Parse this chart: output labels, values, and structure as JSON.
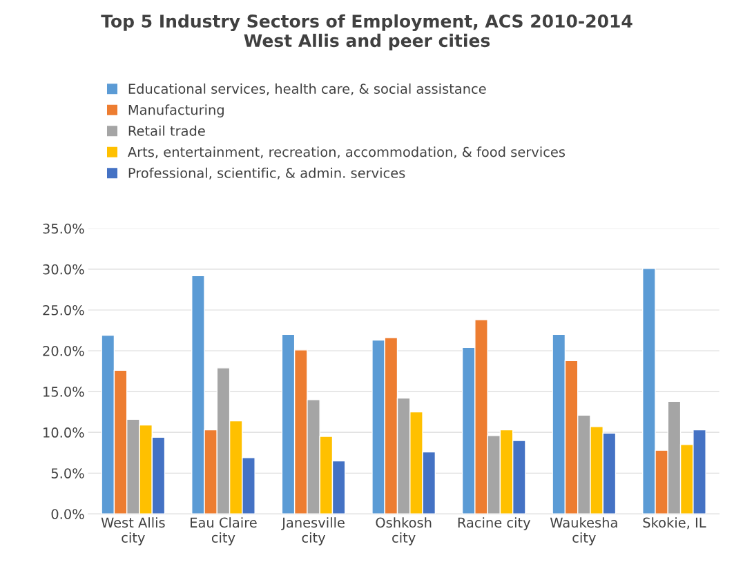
{
  "chart_data": {
    "type": "bar",
    "title": "Top 5 Industry Sectors of Employment, ACS 2010-2014\nWest Allis and peer cities",
    "categories": [
      "West Allis\ncity",
      "Eau Claire\ncity",
      "Janesville\ncity",
      "Oshkosh\ncity",
      "Racine city",
      "Waukesha\ncity",
      "Skokie, IL"
    ],
    "series": [
      {
        "name": "Educational services, health care, & social assistance",
        "color": "#5b9bd5",
        "values": [
          21.9,
          29.2,
          22.0,
          21.3,
          20.4,
          22.0,
          30.1
        ]
      },
      {
        "name": "Manufacturing",
        "color": "#ed7d31",
        "values": [
          17.6,
          10.3,
          20.1,
          21.6,
          23.8,
          18.8,
          7.8
        ]
      },
      {
        "name": "Retail trade",
        "color": "#a5a5a5",
        "values": [
          11.6,
          17.9,
          14.0,
          14.2,
          9.6,
          12.1,
          13.8
        ]
      },
      {
        "name": "Arts, entertainment, recreation, accommodation, & food services",
        "color": "#ffc000",
        "values": [
          10.9,
          11.4,
          9.5,
          12.5,
          10.3,
          10.7,
          8.5
        ]
      },
      {
        "name": "Professional, scientific, & admin. services",
        "color": "#4472c4",
        "values": [
          9.4,
          6.9,
          6.5,
          7.6,
          9.0,
          9.9,
          10.3
        ]
      }
    ],
    "ylim": [
      0,
      35
    ],
    "yticks": [
      {
        "value": 0,
        "label": "0.0%"
      },
      {
        "value": 5,
        "label": "5.0%"
      },
      {
        "value": 10,
        "label": "10.0%"
      },
      {
        "value": 15,
        "label": "15.0%"
      },
      {
        "value": 20,
        "label": "20.0%"
      },
      {
        "value": 25,
        "label": "25.0%"
      },
      {
        "value": 30,
        "label": "30.0%"
      },
      {
        "value": 35,
        "label": "35.0%"
      }
    ],
    "grid": "y",
    "legend": "top"
  }
}
